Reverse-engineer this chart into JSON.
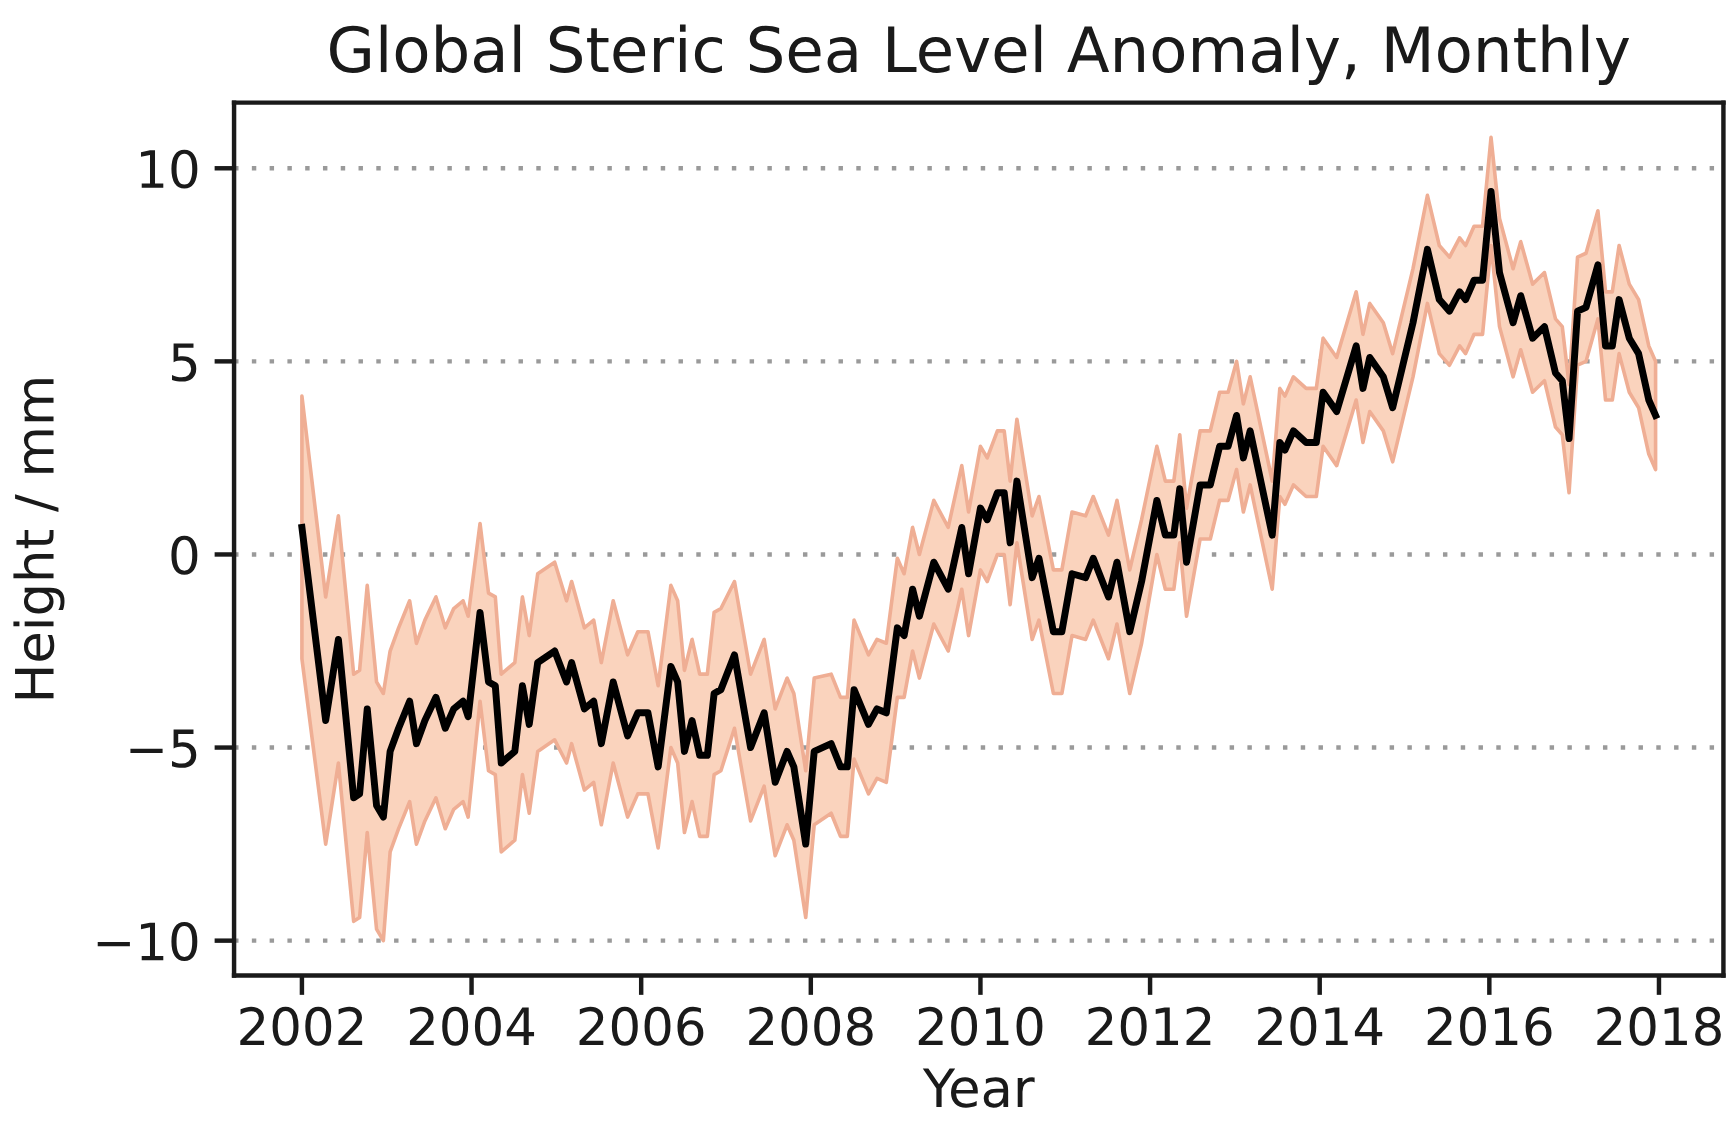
{
  "chart_data": {
    "type": "line",
    "title": "Global Steric Sea Level Anomaly, Monthly",
    "xlabel": "Year",
    "ylabel": "Height / mm",
    "xlim": [
      2001.2,
      2018.76
    ],
    "xticks": [
      2002,
      2004,
      2006,
      2008,
      2010,
      2012,
      2014,
      2016,
      2018
    ],
    "ylim": [
      -10.9,
      11.7
    ],
    "yticks": [
      {
        "value": -10,
        "label": "−10"
      },
      {
        "value": -5,
        "label": "−5"
      },
      0,
      5,
      10
    ],
    "grid": "y",
    "series": [
      {
        "color": "#000000",
        "x": [
          2002.0,
          2002.28,
          2002.43,
          2002.61,
          2002.68,
          2002.77,
          2002.88,
          2002.96,
          2003.04,
          2003.14,
          2003.27,
          2003.35,
          2003.45,
          2003.58,
          2003.69,
          2003.79,
          2003.9,
          2003.96,
          2004.1,
          2004.2,
          2004.28,
          2004.35,
          2004.51,
          2004.6,
          2004.68,
          2004.78,
          2004.98,
          2005.12,
          2005.18,
          2005.33,
          2005.44,
          2005.53,
          2005.67,
          2005.84,
          2005.96,
          2006.08,
          2006.2,
          2006.35,
          2006.43,
          2006.51,
          2006.6,
          2006.69,
          2006.78,
          2006.86,
          2006.94,
          2007.1,
          2007.29,
          2007.45,
          2007.58,
          2007.72,
          2007.8,
          2007.94,
          2008.04,
          2008.24,
          2008.35,
          2008.43,
          2008.51,
          2008.68,
          2008.78,
          2008.89,
          2009.02,
          2009.1,
          2009.2,
          2009.28,
          2009.45,
          2009.62,
          2009.78,
          2009.86,
          2010.0,
          2010.08,
          2010.2,
          2010.28,
          2010.35,
          2010.43,
          2010.61,
          2010.69,
          2010.86,
          2010.96,
          2011.08,
          2011.24,
          2011.33,
          2011.51,
          2011.61,
          2011.76,
          2011.9,
          2012.08,
          2012.18,
          2012.28,
          2012.35,
          2012.43,
          2012.59,
          2012.71,
          2012.82,
          2012.92,
          2013.02,
          2013.1,
          2013.18,
          2013.44,
          2013.53,
          2013.59,
          2013.69,
          2013.84,
          2013.96,
          2014.04,
          2014.2,
          2014.43,
          2014.51,
          2014.59,
          2014.75,
          2014.86,
          2014.98,
          2015.1,
          2015.27,
          2015.41,
          2015.53,
          2015.65,
          2015.72,
          2015.82,
          2015.92,
          2016.02,
          2016.12,
          2016.28,
          2016.37,
          2016.51,
          2016.65,
          2016.78,
          2016.86,
          2016.94,
          2017.04,
          2017.14,
          2017.28,
          2017.37,
          2017.45,
          2017.53,
          2017.65,
          2017.76,
          2017.88,
          2017.96
        ],
        "values": [
          0.7,
          -4.3,
          -2.2,
          -6.3,
          -6.2,
          -4.0,
          -6.5,
          -6.8,
          -5.1,
          -4.5,
          -3.8,
          -4.9,
          -4.3,
          -3.7,
          -4.5,
          -4.0,
          -3.8,
          -4.2,
          -1.5,
          -3.3,
          -3.4,
          -5.4,
          -5.1,
          -3.4,
          -4.4,
          -2.8,
          -2.5,
          -3.3,
          -2.8,
          -4.0,
          -3.8,
          -4.9,
          -3.3,
          -4.7,
          -4.1,
          -4.1,
          -5.5,
          -2.9,
          -3.3,
          -5.1,
          -4.3,
          -5.2,
          -5.2,
          -3.6,
          -3.5,
          -2.6,
          -5.0,
          -4.1,
          -5.9,
          -5.1,
          -5.5,
          -7.5,
          -5.1,
          -4.9,
          -5.5,
          -5.5,
          -3.5,
          -4.4,
          -4.0,
          -4.1,
          -1.9,
          -2.1,
          -0.9,
          -1.6,
          -0.2,
          -0.9,
          0.7,
          -0.5,
          1.2,
          0.9,
          1.6,
          1.6,
          0.3,
          1.9,
          -0.6,
          -0.1,
          -2.0,
          -2.0,
          -0.5,
          -0.6,
          -0.1,
          -1.1,
          -0.2,
          -2.0,
          -0.7,
          1.4,
          0.5,
          0.5,
          1.7,
          -0.2,
          1.8,
          1.8,
          2.8,
          2.8,
          3.6,
          2.5,
          3.2,
          0.5,
          2.9,
          2.7,
          3.2,
          2.9,
          2.9,
          4.2,
          3.7,
          5.4,
          4.3,
          5.1,
          4.6,
          3.8,
          4.9,
          6.0,
          7.9,
          6.6,
          6.3,
          6.8,
          6.6,
          7.1,
          7.1,
          9.4,
          7.3,
          6.0,
          6.7,
          5.6,
          5.9,
          4.7,
          4.5,
          3.0,
          6.3,
          6.4,
          7.5,
          5.4,
          5.4,
          6.6,
          5.6,
          5.2,
          4.0,
          3.6
        ],
        "lower": [
          -2.7,
          -7.5,
          -5.4,
          -9.5,
          -9.4,
          -7.2,
          -9.7,
          -10.0,
          -7.7,
          -7.1,
          -6.4,
          -7.5,
          -6.9,
          -6.3,
          -7.1,
          -6.6,
          -6.4,
          -6.8,
          -3.8,
          -5.6,
          -5.7,
          -7.7,
          -7.4,
          -5.7,
          -6.7,
          -5.1,
          -4.8,
          -5.4,
          -4.9,
          -6.1,
          -5.9,
          -7.0,
          -5.4,
          -6.8,
          -6.2,
          -6.2,
          -7.6,
          -5.0,
          -5.4,
          -7.2,
          -6.4,
          -7.3,
          -7.3,
          -5.7,
          -5.6,
          -4.5,
          -6.9,
          -6.0,
          -7.8,
          -7.0,
          -7.4,
          -9.4,
          -7.0,
          -6.7,
          -7.3,
          -7.3,
          -5.3,
          -6.2,
          -5.8,
          -5.9,
          -3.7,
          -3.7,
          -2.5,
          -3.2,
          -1.8,
          -2.5,
          -0.9,
          -2.1,
          -0.4,
          -0.7,
          0.0,
          0.0,
          -1.3,
          0.3,
          -2.2,
          -1.7,
          -3.6,
          -3.6,
          -2.1,
          -2.2,
          -1.7,
          -2.7,
          -1.8,
          -3.6,
          -2.3,
          0.0,
          -0.9,
          -0.9,
          0.3,
          -1.6,
          0.4,
          0.4,
          1.4,
          1.4,
          2.2,
          1.1,
          1.8,
          -0.9,
          1.5,
          1.3,
          1.8,
          1.5,
          1.5,
          2.8,
          2.3,
          4.0,
          2.9,
          3.7,
          3.2,
          2.4,
          3.5,
          4.6,
          6.5,
          5.2,
          4.9,
          5.4,
          5.2,
          5.7,
          5.7,
          8.0,
          5.9,
          4.6,
          5.3,
          4.2,
          4.5,
          3.3,
          3.1,
          1.6,
          4.9,
          5.0,
          6.1,
          4.0,
          4.0,
          5.2,
          4.2,
          3.8,
          2.6,
          2.2
        ],
        "upper": [
          4.1,
          -1.1,
          1.0,
          -3.1,
          -3.0,
          -0.8,
          -3.3,
          -3.6,
          -2.5,
          -1.9,
          -1.2,
          -2.3,
          -1.7,
          -1.1,
          -1.9,
          -1.4,
          -1.2,
          -1.6,
          0.8,
          -1.0,
          -1.1,
          -3.1,
          -2.8,
          -1.1,
          -2.1,
          -0.5,
          -0.2,
          -1.2,
          -0.7,
          -1.9,
          -1.7,
          -2.8,
          -1.2,
          -2.6,
          -2.0,
          -2.0,
          -3.4,
          -0.8,
          -1.2,
          -3.0,
          -2.2,
          -3.1,
          -3.1,
          -1.5,
          -1.4,
          -0.7,
          -3.1,
          -2.2,
          -4.0,
          -3.2,
          -3.6,
          -5.6,
          -3.2,
          -3.1,
          -3.7,
          -3.7,
          -1.7,
          -2.6,
          -2.2,
          -2.3,
          -0.1,
          -0.5,
          0.7,
          0.0,
          1.4,
          0.7,
          2.3,
          1.1,
          2.8,
          2.5,
          3.2,
          3.2,
          1.9,
          3.5,
          1.0,
          1.5,
          -0.4,
          -0.4,
          1.1,
          1.0,
          1.5,
          0.5,
          1.4,
          -0.4,
          0.9,
          2.8,
          1.9,
          1.9,
          3.1,
          1.2,
          3.2,
          3.2,
          4.2,
          4.2,
          5.0,
          3.9,
          4.6,
          1.9,
          4.3,
          4.1,
          4.6,
          4.3,
          4.3,
          5.6,
          5.1,
          6.8,
          5.7,
          6.5,
          6.0,
          5.2,
          6.3,
          7.4,
          9.3,
          8.0,
          7.7,
          8.2,
          8.0,
          8.5,
          8.5,
          10.8,
          8.7,
          7.4,
          8.1,
          7.0,
          7.3,
          6.1,
          5.9,
          4.4,
          7.7,
          7.8,
          8.9,
          6.8,
          6.8,
          8.0,
          7.0,
          6.6,
          5.4,
          5.0
        ]
      }
    ]
  }
}
